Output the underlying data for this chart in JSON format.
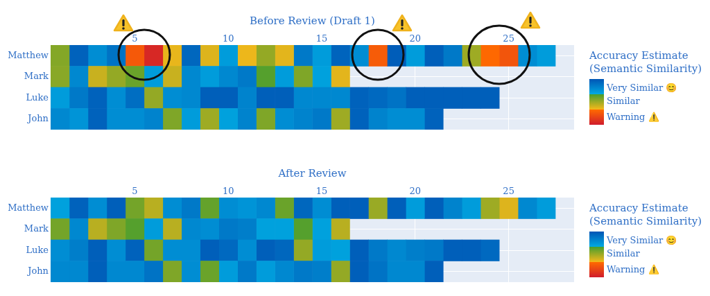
{
  "chart_data": [
    {
      "type": "heatmap",
      "title": "Before Review (Draft 1)",
      "x": [
        1,
        2,
        3,
        4,
        5,
        6,
        7,
        8,
        9,
        10,
        11,
        12,
        13,
        14,
        15,
        16,
        17,
        18,
        19,
        20,
        21,
        22,
        23,
        24,
        25,
        26,
        27
      ],
      "xlim": [
        0.5,
        28.5
      ],
      "xticks": [
        5,
        10,
        15,
        20,
        25
      ],
      "y_categories": [
        "Matthew",
        "Mark",
        "Luke",
        "John"
      ],
      "cells": [
        [
          0.55,
          0.95,
          0.78,
          0.88,
          0.26,
          0.05,
          0.36,
          0.93,
          0.38,
          0.72,
          0.35,
          0.52,
          0.37,
          0.86,
          0.72,
          0.94,
          0.78,
          0.27,
          0.97,
          0.72,
          0.96,
          0.86,
          0.5,
          0.32,
          0.24,
          0.78,
          0.72
        ],
        [
          0.54,
          0.8,
          0.42,
          0.52,
          0.6,
          0.72,
          0.42,
          0.8,
          0.72,
          0.8,
          0.86,
          0.64,
          0.72,
          0.56,
          0.7,
          0.37,
          null,
          null,
          null,
          null,
          null,
          null,
          null,
          null,
          null,
          null,
          null
        ],
        [
          0.72,
          0.86,
          0.95,
          0.78,
          0.9,
          0.52,
          0.78,
          0.8,
          0.96,
          0.96,
          0.82,
          0.96,
          0.96,
          0.8,
          0.8,
          0.8,
          0.95,
          0.92,
          0.88,
          0.96,
          0.96,
          0.96,
          0.96,
          0.96,
          null,
          null,
          null
        ],
        [
          0.8,
          0.75,
          0.95,
          0.78,
          0.78,
          0.82,
          0.56,
          0.72,
          0.5,
          0.7,
          0.82,
          0.56,
          0.78,
          0.82,
          0.86,
          0.5,
          0.95,
          0.82,
          0.78,
          0.78,
          0.95,
          null,
          null,
          null,
          null,
          null,
          null
        ]
      ],
      "clim": [
        0,
        1
      ],
      "cticks": [
        {
          "value": 0.8,
          "label": "Very Similar 😊"
        },
        {
          "value": 0.5,
          "label": "Similar"
        },
        {
          "value": 0.15,
          "label": "Warning ⚠️"
        }
      ],
      "clabel": "Accuracy Estimate (Semantic Similarity)",
      "grid": true
    },
    {
      "type": "heatmap",
      "title": "After Review",
      "x": [
        1,
        2,
        3,
        4,
        5,
        6,
        7,
        8,
        9,
        10,
        11,
        12,
        13,
        14,
        15,
        16,
        17,
        18,
        19,
        20,
        21,
        22,
        23,
        24,
        25,
        26,
        27
      ],
      "xlim": [
        0.5,
        28.5
      ],
      "xticks": [
        5,
        10,
        15,
        20,
        25
      ],
      "y_categories": [
        "Matthew",
        "Mark",
        "Luke",
        "John"
      ],
      "cells": [
        [
          0.7,
          0.95,
          0.78,
          0.96,
          0.58,
          0.45,
          0.78,
          0.86,
          0.61,
          0.78,
          0.75,
          0.8,
          0.6,
          0.93,
          0.78,
          0.96,
          0.96,
          0.51,
          0.96,
          0.72,
          0.96,
          0.82,
          0.72,
          0.5,
          0.38,
          0.8,
          0.72
        ],
        [
          0.58,
          0.8,
          0.45,
          0.56,
          0.64,
          0.72,
          0.45,
          0.8,
          0.78,
          0.86,
          0.84,
          0.7,
          0.7,
          0.64,
          0.7,
          0.45,
          null,
          null,
          null,
          null,
          null,
          null,
          null,
          null,
          null,
          null,
          null
        ],
        [
          0.78,
          0.84,
          0.96,
          0.78,
          0.95,
          0.58,
          0.78,
          0.78,
          0.96,
          0.92,
          0.78,
          0.96,
          0.93,
          0.52,
          0.72,
          0.7,
          0.96,
          0.86,
          0.8,
          0.84,
          0.86,
          0.96,
          0.96,
          0.92,
          null,
          null,
          null
        ],
        [
          0.8,
          0.8,
          0.96,
          0.8,
          0.8,
          0.88,
          0.56,
          0.78,
          0.6,
          0.72,
          0.86,
          0.72,
          0.8,
          0.86,
          0.84,
          0.52,
          0.96,
          0.88,
          0.8,
          0.8,
          0.96,
          null,
          null,
          null,
          null,
          null,
          null
        ]
      ],
      "clim": [
        0,
        1
      ],
      "cticks": [
        {
          "value": 0.8,
          "label": "Very Similar 😊"
        },
        {
          "value": 0.5,
          "label": "Similar"
        },
        {
          "value": 0.15,
          "label": "Warning ⚠️"
        }
      ],
      "clabel": "Accuracy Estimate (Semantic Similarity)",
      "grid": true
    }
  ]
}
